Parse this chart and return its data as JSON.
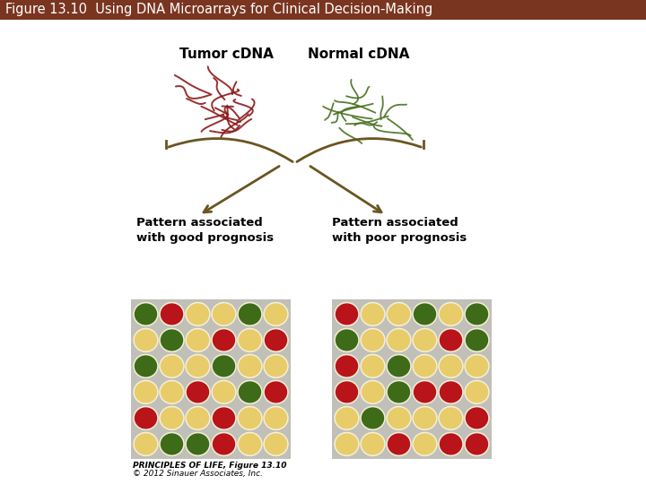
{
  "title": "Figure 13.10  Using DNA Microarrays for Clinical Decision-Making",
  "title_bg": "#7a3520",
  "title_color": "#ffffff",
  "title_fontsize": 10.5,
  "header_label_tumor": "Tumor cDNA",
  "header_label_normal": "Normal cDNA",
  "label_good": "Pattern associated\nwith good prognosis",
  "label_poor": "Pattern associated\nwith poor prognosis",
  "caption_line1": "PRINCIPLES OF LIFE, Figure 13.10",
  "caption_line2": "© 2012 Sinauer Associates, Inc.",
  "bg_color": "#ffffff",
  "grid_bg": "#c0bfb8",
  "dot_colors": {
    "R": "#b81419",
    "G": "#3d6b18",
    "Y": "#e8cc6a"
  },
  "dot_stroke": "#f5f0d8",
  "good_grid": [
    [
      "G",
      "R",
      "Y",
      "Y",
      "G",
      "Y"
    ],
    [
      "Y",
      "G",
      "Y",
      "R",
      "Y",
      "R"
    ],
    [
      "G",
      "Y",
      "Y",
      "G",
      "Y",
      "Y"
    ],
    [
      "Y",
      "Y",
      "R",
      "Y",
      "G",
      "R"
    ],
    [
      "R",
      "Y",
      "Y",
      "R",
      "Y",
      "Y"
    ],
    [
      "Y",
      "G",
      "G",
      "R",
      "Y",
      "Y"
    ]
  ],
  "poor_grid": [
    [
      "R",
      "Y",
      "Y",
      "G",
      "Y",
      "G"
    ],
    [
      "G",
      "Y",
      "Y",
      "Y",
      "R",
      "G"
    ],
    [
      "R",
      "Y",
      "G",
      "Y",
      "Y",
      "Y"
    ],
    [
      "R",
      "Y",
      "G",
      "R",
      "R",
      "Y"
    ],
    [
      "Y",
      "G",
      "Y",
      "Y",
      "Y",
      "R"
    ],
    [
      "Y",
      "Y",
      "R",
      "Y",
      "R",
      "R"
    ]
  ],
  "tumor_color": "#8b1a1a",
  "normal_color": "#4a7020",
  "arrow_color": "#6b5520",
  "brace_color": "#6b5520",
  "title_bar_height": 22
}
